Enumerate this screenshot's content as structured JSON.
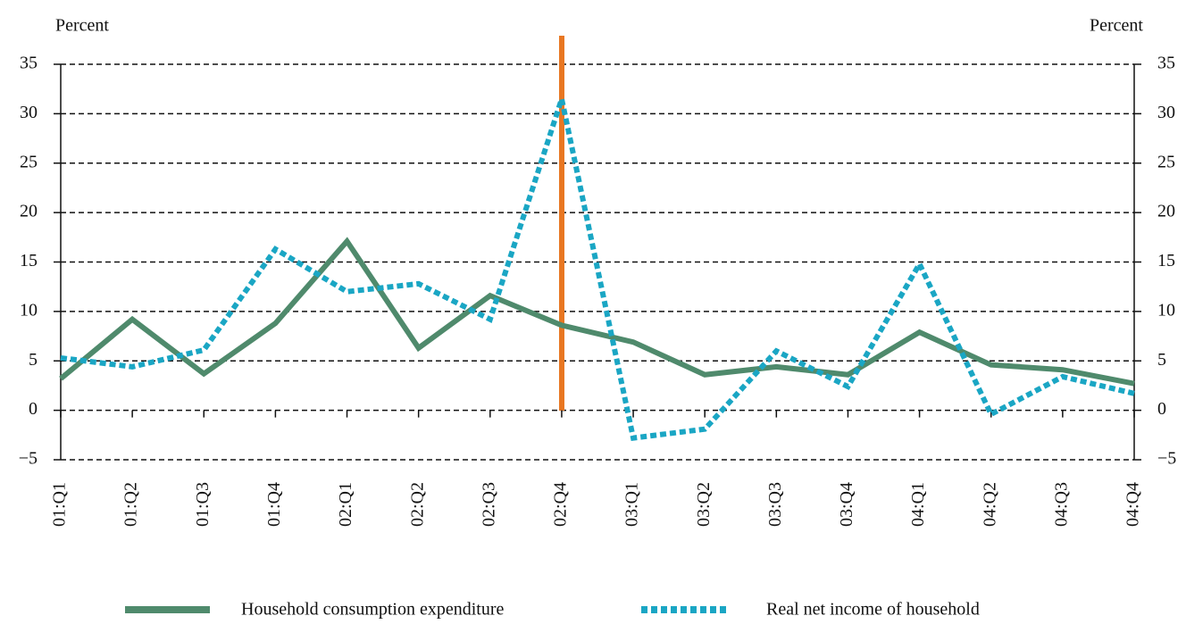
{
  "chart_data": {
    "type": "line",
    "ylabel": "Percent",
    "y2label": "Percent",
    "categories": [
      "01:Q1",
      "01:Q2",
      "01:Q3",
      "01:Q4",
      "02:Q1",
      "02:Q2",
      "02:Q3",
      "02:Q4",
      "03:Q1",
      "03:Q2",
      "03:Q3",
      "03:Q4",
      "04:Q1",
      "04:Q2",
      "04:Q3",
      "04:Q4"
    ],
    "series": [
      {
        "name": "Household consumption expenditure",
        "color": "#4f8a6c",
        "style": "solid",
        "values": [
          3.2,
          9.2,
          3.7,
          8.8,
          17.1,
          6.3,
          11.6,
          8.6,
          6.9,
          3.6,
          4.4,
          3.6,
          7.9,
          4.6,
          4.1,
          2.7
        ]
      },
      {
        "name": "Real net income of household",
        "color": "#1aa6c4",
        "style": "dotted",
        "values": [
          5.3,
          4.4,
          6.1,
          16.3,
          12.0,
          12.8,
          9.2,
          31.5,
          -2.8,
          -1.9,
          6.0,
          2.4,
          14.8,
          -0.4,
          3.4,
          1.7
        ]
      }
    ],
    "ylim": [
      -5,
      35
    ],
    "yticks": [
      {
        "value": -5,
        "label": "−5"
      },
      0,
      5,
      10,
      15,
      20,
      25,
      30,
      35
    ],
    "y2lim": [
      -5,
      35
    ],
    "y2ticks": [
      {
        "value": -5,
        "label": "−5"
      },
      0,
      5,
      10,
      15,
      20,
      25,
      30,
      35
    ],
    "grid": true,
    "legend": "bottom"
  }
}
